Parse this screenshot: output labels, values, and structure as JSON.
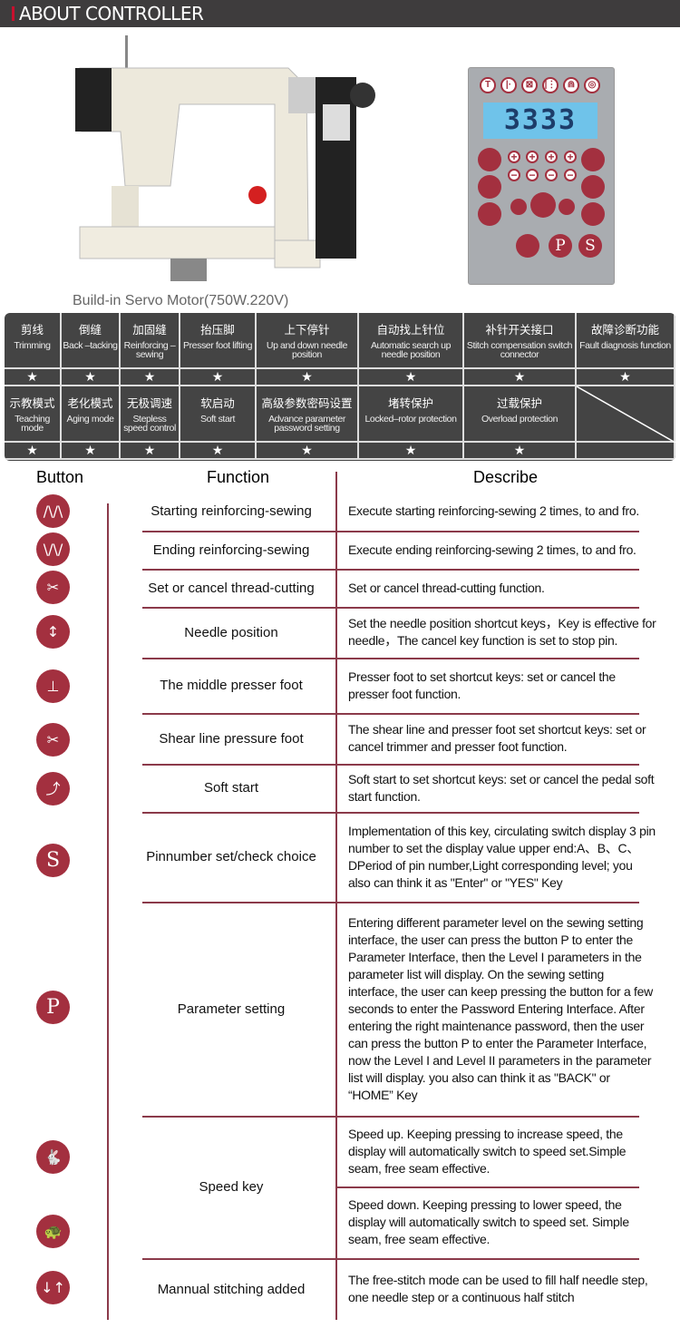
{
  "header": {
    "title": "ABOUT CONTROLLER"
  },
  "product": {
    "caption": "Build-in Servo Motor(750W.220V)",
    "display_value": "3333",
    "top_keys": [
      "T",
      "|·",
      "⊠",
      "|⋮",
      "⋒",
      "◎"
    ],
    "side_keys": [
      "P",
      "S"
    ]
  },
  "features": {
    "row1": [
      {
        "zh": "剪线",
        "en": "Trimming"
      },
      {
        "zh": "倒缝",
        "en": "Back –tacking"
      },
      {
        "zh": "加固缝",
        "en": "Reinforcing –sewing"
      },
      {
        "zh": "抬压脚",
        "en": "Presser foot lifting"
      },
      {
        "zh": "上下停针",
        "en": "Up and down needle position"
      },
      {
        "zh": "自动找上针位",
        "en": "Automatic search up needle position"
      },
      {
        "zh": "补针开关接口",
        "en": "Stitch compensation switch connector"
      },
      {
        "zh": "故障诊断功能",
        "en": "Fault diagnosis function"
      }
    ],
    "row2": [
      {
        "zh": "示教模式",
        "en": "Teaching mode"
      },
      {
        "zh": "老化模式",
        "en": "Aging mode"
      },
      {
        "zh": "无极调速",
        "en": "Stepless speed control"
      },
      {
        "zh": "软启动",
        "en": "Soft start"
      },
      {
        "zh": "高级参数密码设置",
        "en": "Advance parameter password setting"
      },
      {
        "zh": "堵转保护",
        "en": "Locked–rotor protection"
      },
      {
        "zh": "过载保护",
        "en": "Overload protection"
      }
    ],
    "star": "★"
  },
  "table": {
    "headers": {
      "button": "Button",
      "function": "Function",
      "describe": "Describe"
    },
    "rows": [
      {
        "icon": "start-reinforce",
        "glyph": "/\\/\\",
        "function": "Starting reinforcing-sewing",
        "describe": "Execute starting reinforcing-sewing 2 times, to and fro."
      },
      {
        "icon": "end-reinforce",
        "glyph": "\\/\\/",
        "function": "Ending reinforcing-sewing",
        "describe": "Execute ending reinforcing-sewing 2 times, to and fro."
      },
      {
        "icon": "scissors",
        "glyph": "✂",
        "function": "Set or cancel thread-cutting",
        "describe": "Set or cancel thread-cutting function."
      },
      {
        "icon": "needle-position",
        "glyph": "↕",
        "function": "Needle position",
        "describe": "Set the needle position shortcut keys，Key is effective for needle，The cancel key function is set to stop pin."
      },
      {
        "icon": "presser-foot",
        "glyph": "⊥",
        "function": "The middle presser foot",
        "describe": "Presser foot to set shortcut keys: set or cancel the presser foot function."
      },
      {
        "icon": "shear-presser",
        "glyph": "✂",
        "function": "Shear line pressure foot",
        "describe": "The shear line and presser foot set shortcut keys: set or cancel trimmer and presser foot function."
      },
      {
        "icon": "soft-start",
        "glyph": "⤴",
        "function": "Soft start",
        "describe": "Soft start to set shortcut keys: set or cancel the pedal soft start function."
      },
      {
        "icon": "s-key",
        "glyph": "S",
        "function": "Pinnumber set/check choice",
        "describe": "Implementation of this key, circulating switch display 3 pin number to set the display value upper end:A、B、C、DPeriod of pin number,Light corresponding level; you also can think it as \"Enter\" or \"YES\" Key"
      },
      {
        "icon": "p-key",
        "glyph": "P",
        "function": "Parameter setting",
        "describe": "Entering different parameter level on the sewing setting interface, the user can press the button P to enter the Parameter Interface, then the Level I parameters in the parameter list will display. On the sewing setting interface, the user can keep pressing the button for a few seconds to enter the Password Entering Interface. After entering the right maintenance password, then the user can press the button P to enter the Parameter Interface, now the Level I and Level II parameters in the parameter list will display. you also can think it as \"BACK\" or “HOME” Key"
      },
      {
        "icon": "rabbit",
        "glyph": "🐇",
        "function": "Speed key",
        "describe": "Speed up. Keeping pressing to increase speed, the display will automatically switch to speed set.Simple seam, free seam effective."
      },
      {
        "icon": "turtle",
        "glyph": "🐢",
        "describe": "Speed down. Keeping pressing to lower speed, the display will automatically switch to speed set. Simple seam, free seam effective."
      },
      {
        "icon": "manual-stitch",
        "glyph": "↓↑",
        "function": "Mannual stitching added",
        "describe": "The free-stitch mode can be used to fill half needle step, one needle step or a continuous half stitch"
      }
    ]
  },
  "colors": {
    "accent": "#a3303f",
    "header_bg": "#3e3c3d",
    "grid_bg": "#444444",
    "line": "#8b3a4a"
  }
}
